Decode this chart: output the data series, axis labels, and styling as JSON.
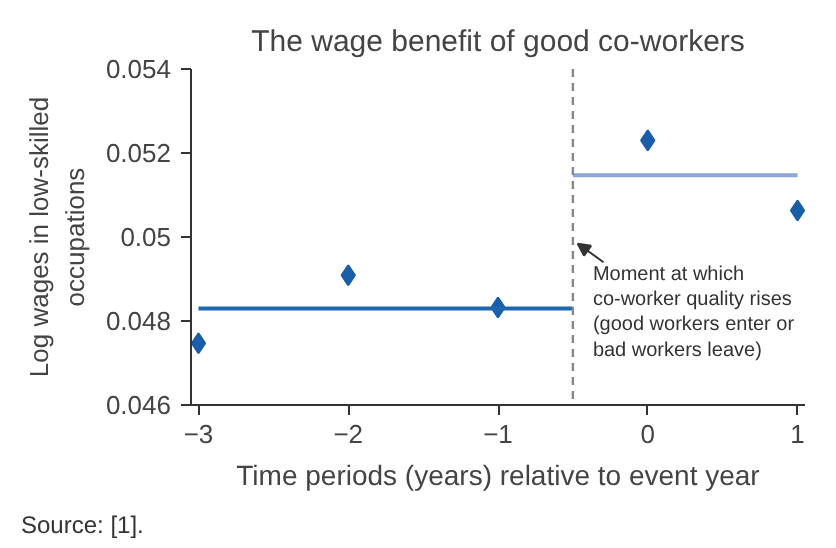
{
  "chart_data": {
    "type": "scatter",
    "title": "The wage benefit of good co-workers",
    "xlabel": "Time periods (years) relative to event year",
    "ylabel": "Log wages in low-skilled\noccupations",
    "x": [
      -3,
      -2,
      -1,
      0,
      1
    ],
    "marker": "diamond",
    "grid": false,
    "series": [
      {
        "color": "#1a5ea8",
        "values": [
          0.04747,
          0.04909,
          0.04832,
          0.0523,
          0.05063
        ]
      },
      {
        "type": "line",
        "color": "#1f66b0",
        "x": [
          -3,
          -0.5
        ],
        "values": [
          0.0483,
          0.0483
        ],
        "marker": "none",
        "line_style": "solid"
      },
      {
        "type": "line",
        "color": "#8aa6dc",
        "x": [
          -0.5,
          1
        ],
        "values": [
          0.05147,
          0.05147
        ],
        "marker": "none",
        "line_style": "solid"
      }
    ],
    "xlim": [
      -3.05,
      1.05
    ],
    "ylim": [
      0.046,
      0.054
    ],
    "xticks": [
      {
        "value": -3,
        "label": "−3"
      },
      {
        "value": -2,
        "label": "−2"
      },
      {
        "value": -1,
        "label": "−1"
      },
      0,
      1
    ],
    "yticks": [
      0.046,
      0.048,
      0.05,
      0.052,
      0.054
    ],
    "ref_lines": [
      {
        "axis": "x",
        "value": -0.5,
        "label": "Moment at which\nco-worker quality rises\n(good workers enter or\nbad workers leave)",
        "color": "#888888",
        "line_style": "dashed"
      }
    ],
    "annotations": [
      "Source: [1]."
    ]
  }
}
